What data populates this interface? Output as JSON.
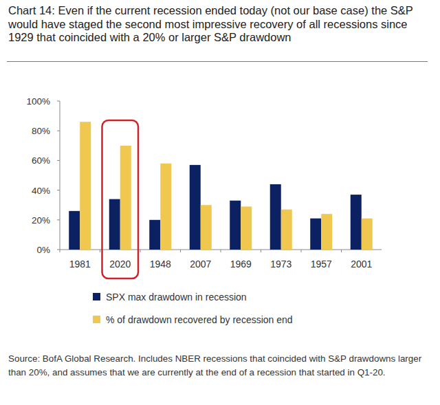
{
  "chart_data": {
    "type": "bar",
    "title": "Chart 14: Even if the current recession ended today (not our base case) the S&P would have staged the second most impressive recovery of all recessions since 1929 that coincided with a 20% or larger S&P drawdown",
    "note": "Source: BofA Global Research. Includes NBER recessions that coincided with S&P drawdowns larger than 20%, and assumes that we are currently at the end of a recession that started in Q1-20.",
    "categories": [
      "1981",
      "2020",
      "1948",
      "2007",
      "1969",
      "1973",
      "1957",
      "2001"
    ],
    "series": [
      {
        "name": "SPX max drawdown in recession",
        "color": "#0b2161",
        "values": [
          26,
          34,
          20,
          57,
          33,
          44,
          21,
          37
        ]
      },
      {
        "name": "% of drawdown recovered by recession end",
        "color": "#f0c850",
        "values": [
          86,
          70,
          58,
          30,
          29,
          27,
          24,
          21
        ]
      }
    ],
    "ylim": [
      0,
      100
    ],
    "yticks": [
      {
        "value": 0,
        "label": "0%"
      },
      {
        "value": 20,
        "label": "20%"
      },
      {
        "value": 40,
        "label": "40%"
      },
      {
        "value": 60,
        "label": "60%"
      },
      {
        "value": 80,
        "label": "80%"
      },
      {
        "value": 100,
        "label": "100%"
      }
    ],
    "grid": false,
    "legend": "bottom"
  }
}
